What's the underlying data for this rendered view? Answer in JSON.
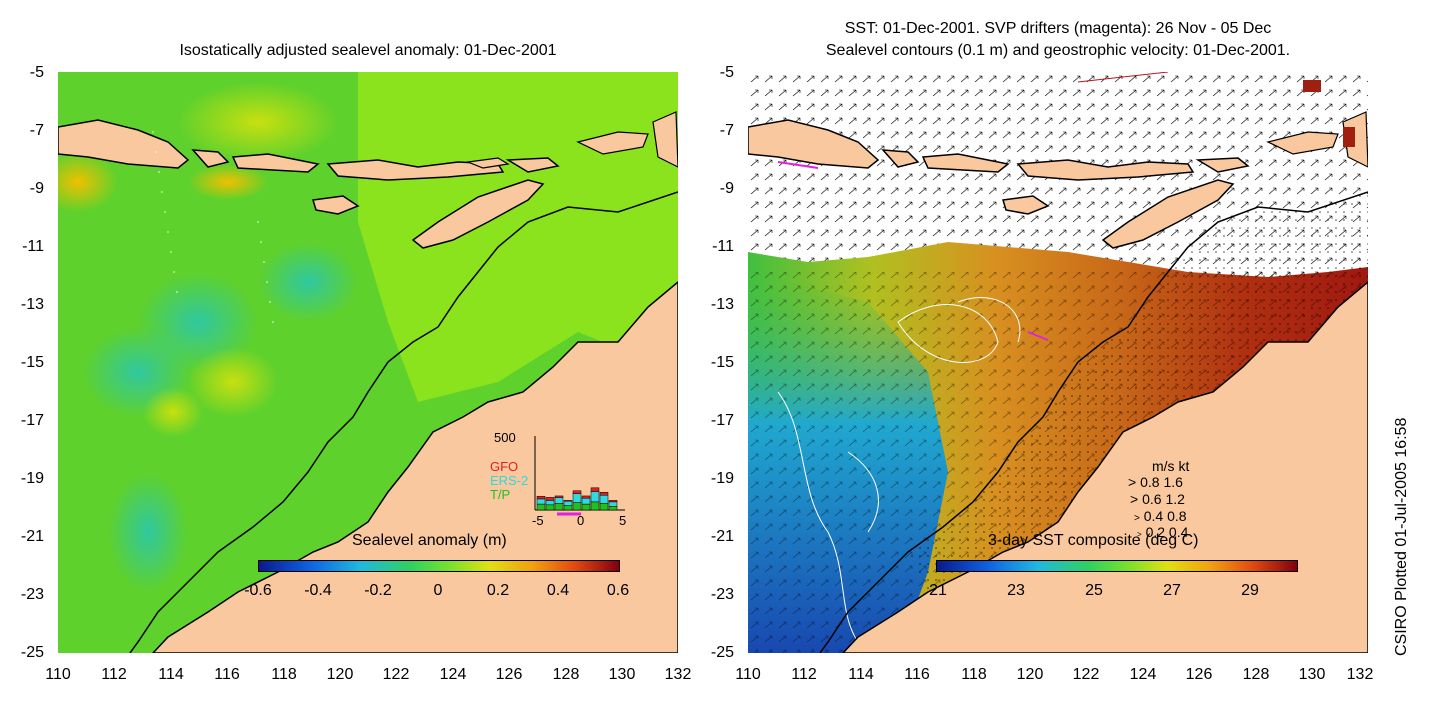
{
  "left_panel": {
    "title": "Isostatically adjusted sealevel anomaly: 01-Dec-2001",
    "colorbar": {
      "label": "Sealevel anomaly (m)",
      "ticks": [
        "-0.6",
        "-0.4",
        "-0.2",
        "0",
        "0.2",
        "0.4",
        "0.6"
      ]
    },
    "histogram": {
      "ymax_label": "500",
      "x_ticks": [
        "-5",
        "0",
        "5"
      ],
      "legend": [
        {
          "label": "GFO",
          "color": "#e02020"
        },
        {
          "label": "ERS-2",
          "color": "#30d8e0"
        },
        {
          "label": "T/P",
          "color": "#20c020"
        }
      ],
      "bins": [
        {
          "tp": 40,
          "ers": 35,
          "gfo": 18
        },
        {
          "tp": 35,
          "ers": 30,
          "gfo": 20
        },
        {
          "tp": 45,
          "ers": 40,
          "gfo": 10
        },
        {
          "tp": 30,
          "ers": 30,
          "gfo": 5
        },
        {
          "tp": 50,
          "ers": 60,
          "gfo": 20
        },
        {
          "tp": 40,
          "ers": 40,
          "gfo": 15
        },
        {
          "tp": 55,
          "ers": 70,
          "gfo": 25
        },
        {
          "tp": 45,
          "ers": 55,
          "gfo": 20
        },
        {
          "tp": 25,
          "ers": 30,
          "gfo": 10
        }
      ]
    }
  },
  "right_panel": {
    "title_line1": "SST: 01-Dec-2001. SVP drifters (magenta): 26 Nov - 05 Dec",
    "title_line2": "Sealevel contours (0.1 m) and geostrophic velocity: 01-Dec-2001.",
    "colorbar": {
      "label": "3-day SST composite (deg C)",
      "ticks": [
        "21",
        "23",
        "25",
        "27",
        "29"
      ]
    },
    "speed_legend": {
      "header": "m/s  kt",
      "rows": [
        {
          "ms": "0.8",
          "kt": "1.6"
        },
        {
          "ms": "0.6",
          "kt": "1.2"
        },
        {
          "ms": "0.4",
          "kt": "0.8"
        },
        {
          "ms": "0.2",
          "kt": "0.4"
        }
      ]
    }
  },
  "axes": {
    "y_ticks": [
      "-5",
      "-7",
      "-9",
      "-11",
      "-13",
      "-15",
      "-17",
      "-19",
      "-21",
      "-23",
      "-25"
    ],
    "x_ticks": [
      "110",
      "112",
      "114",
      "116",
      "118",
      "120",
      "122",
      "124",
      "126",
      "128",
      "130",
      "132"
    ]
  },
  "credit": "CSIRO Plotted 01-Jul-2005 16:58",
  "colors": {
    "land": "#f9c89e",
    "ocean_green": "#66d82a",
    "ocean_lime": "#99e619",
    "sst_orange": "#d07020",
    "sst_red": "#a01810",
    "sst_blue": "#2050c0"
  }
}
